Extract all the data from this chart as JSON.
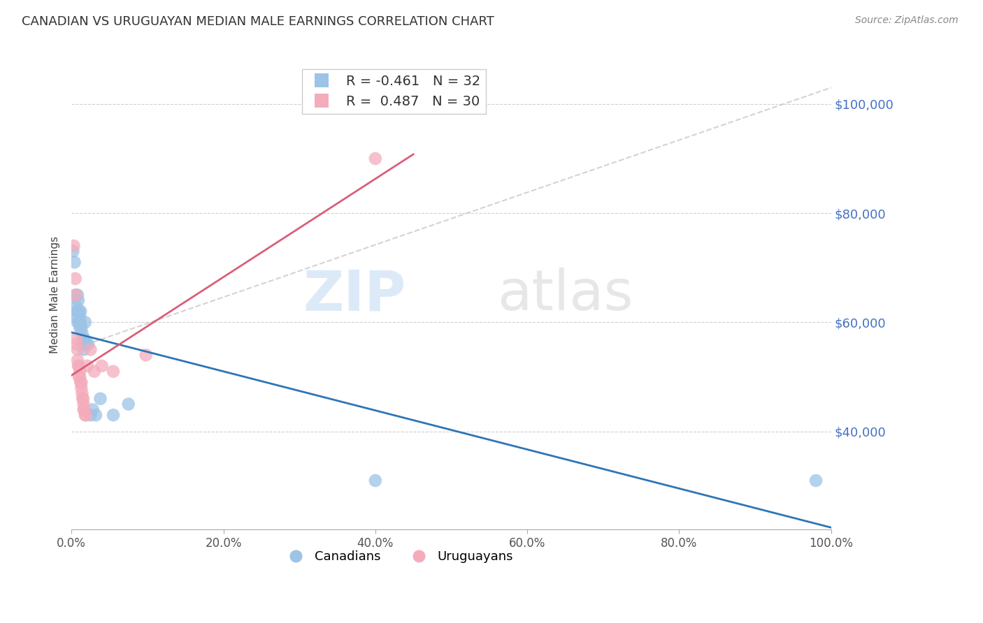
{
  "title": "CANADIAN VS URUGUAYAN MEDIAN MALE EARNINGS CORRELATION CHART",
  "source": "Source: ZipAtlas.com",
  "ylabel": "Median Male Earnings",
  "yticks": [
    40000,
    60000,
    80000,
    100000
  ],
  "ytick_labels": [
    "$40,000",
    "$60,000",
    "$80,000",
    "$100,000"
  ],
  "xlim": [
    0.0,
    1.0
  ],
  "ylim": [
    22000,
    108000
  ],
  "canadian_R": -0.461,
  "canadian_N": 32,
  "uruguayan_R": 0.487,
  "uruguayan_N": 30,
  "canadian_color": "#9dc3e6",
  "uruguayan_color": "#f4acbb",
  "canadian_line_color": "#2e75b6",
  "uruguayan_line_color": "#d95f7a",
  "watermark_zip": "ZIP",
  "watermark_atlas": "atlas",
  "canadians_x": [
    0.002,
    0.004,
    0.005,
    0.006,
    0.007,
    0.007,
    0.008,
    0.008,
    0.009,
    0.009,
    0.01,
    0.01,
    0.011,
    0.011,
    0.012,
    0.012,
    0.013,
    0.014,
    0.015,
    0.016,
    0.017,
    0.018,
    0.02,
    0.022,
    0.025,
    0.028,
    0.032,
    0.038,
    0.055,
    0.075,
    0.4,
    0.98
  ],
  "canadians_y": [
    73000,
    71000,
    65000,
    63000,
    62000,
    61000,
    65000,
    60000,
    64000,
    62000,
    62000,
    60000,
    61000,
    59000,
    62000,
    60000,
    59000,
    58000,
    56000,
    55000,
    57000,
    60000,
    56000,
    56000,
    43000,
    44000,
    43000,
    46000,
    43000,
    45000,
    31000,
    31000
  ],
  "uruguayans_x": [
    0.003,
    0.005,
    0.006,
    0.006,
    0.007,
    0.008,
    0.008,
    0.009,
    0.01,
    0.01,
    0.011,
    0.011,
    0.012,
    0.013,
    0.013,
    0.014,
    0.015,
    0.015,
    0.016,
    0.016,
    0.017,
    0.018,
    0.019,
    0.021,
    0.025,
    0.03,
    0.04,
    0.055,
    0.4,
    0.098
  ],
  "uruguayans_y": [
    74000,
    68000,
    65000,
    57000,
    56000,
    55000,
    53000,
    52000,
    52000,
    50000,
    51000,
    50000,
    49000,
    49000,
    48000,
    47000,
    46000,
    46000,
    45000,
    44000,
    44000,
    43000,
    43000,
    52000,
    55000,
    51000,
    52000,
    51000,
    90000,
    54000
  ],
  "diag_line_x": [
    0.0,
    1.0
  ],
  "diag_line_y": [
    55000,
    103000
  ]
}
